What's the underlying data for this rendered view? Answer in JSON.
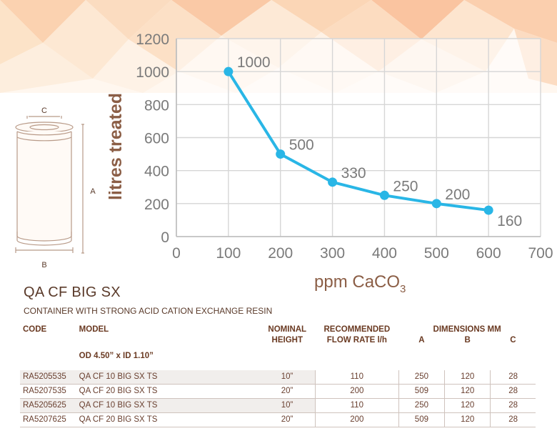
{
  "chart_data": {
    "type": "line",
    "x": [
      100,
      200,
      300,
      400,
      500,
      600
    ],
    "y": [
      1000,
      500,
      330,
      250,
      200,
      160
    ],
    "data_labels": [
      "1000",
      "500",
      "330",
      "250",
      "200",
      "160"
    ],
    "ylabel": "litres treated",
    "xlabel_main": "ppm CaCO",
    "xlabel_sub": "3",
    "xlim": [
      0,
      700
    ],
    "ylim": [
      0,
      1200
    ],
    "xticks": [
      "0",
      "100",
      "200",
      "300",
      "400",
      "500",
      "600",
      "700"
    ],
    "yticks": [
      "0",
      "200",
      "400",
      "600",
      "800",
      "1000",
      "1200"
    ],
    "grid": true,
    "line_color": "#29b6e6",
    "axis_label_color": "#8b5e46",
    "tick_color": "#7a7a7a"
  },
  "diagram": {
    "label_a": "A",
    "label_b": "B",
    "label_c": "C"
  },
  "product": {
    "title": "QA CF BIG SX",
    "subtitle": "CONTAINER WITH STRONG ACID CATION EXCHANGE RESIN"
  },
  "table": {
    "headers": {
      "code": "CODE",
      "model": "MODEL",
      "height_l1": "NOMINAL",
      "height_l2": "HEIGHT",
      "flow_l1": "RECOMMENDED",
      "flow_l2": "FLOW RATE l/h",
      "dims": "DIMENSIONS MM",
      "a": "A",
      "b": "B",
      "c": "C"
    },
    "subheader": "OD 4.50” x ID 1.10”",
    "rows": [
      {
        "code": "RA5205535",
        "model": "QA CF 10 BIG SX TS",
        "height": "10”",
        "flow": "110",
        "a": "250",
        "b": "120",
        "c": "28"
      },
      {
        "code": "RA5207535",
        "model": "QA CF 20 BIG SX TS",
        "height": "20”",
        "flow": "200",
        "a": "509",
        "b": "120",
        "c": "28"
      },
      {
        "code": "RA5205625",
        "model": "QA CF 10 BIG SX TS",
        "height": "10”",
        "flow": "110",
        "a": "250",
        "b": "120",
        "c": "28"
      },
      {
        "code": "RA5207625",
        "model": "QA CF 20 BIG SX TS",
        "height": "20”",
        "flow": "200",
        "a": "509",
        "b": "120",
        "c": "28"
      }
    ]
  }
}
